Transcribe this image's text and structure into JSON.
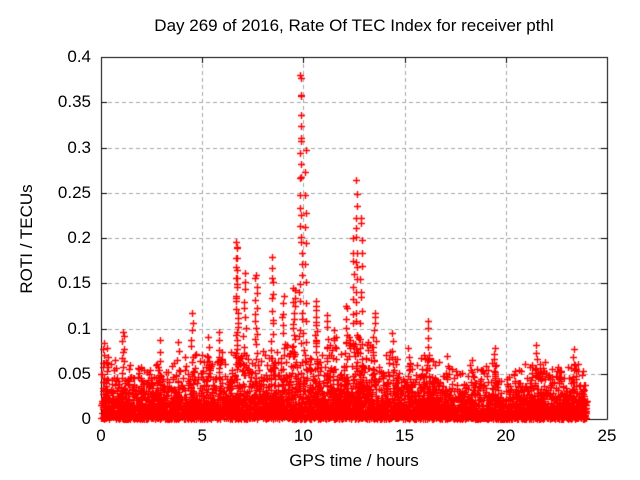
{
  "window": {
    "background": "#ffffff",
    "frame_color": "#000000",
    "text_color": "#000000"
  },
  "chart_data": {
    "type": "scatter",
    "title": "Day 269 of 2016, Rate Of TEC Index for receiver pthl",
    "xlabel": "GPS time / hours",
    "ylabel": "ROTI / TECUs",
    "xlim": [
      0,
      25
    ],
    "ylim": [
      0,
      0.4
    ],
    "xticks": {
      "values": [
        0,
        5,
        10,
        15,
        20,
        25
      ],
      "labels": [
        "0",
        "5",
        "10",
        "15",
        "20",
        "25"
      ]
    },
    "yticks": {
      "values": [
        0,
        0.05,
        0.1,
        0.15,
        0.2,
        0.25,
        0.3,
        0.35,
        0.4
      ],
      "labels": [
        "0",
        "0.05",
        "0.1",
        "0.15",
        "0.2",
        "0.25",
        "0.3",
        "0.35",
        "0.4"
      ]
    },
    "grid": {
      "visible": true,
      "style": "dashed",
      "color": "#a8a8a8"
    },
    "marker": {
      "glyph": "plus",
      "color": "#ff0000",
      "size": 7,
      "stroke": 1.4
    },
    "data_time_range": [
      0,
      24
    ],
    "seed": 42,
    "base_band": {
      "count": 5200,
      "exp_divisor": 3.2,
      "clamp_factor": 1.25,
      "envelope": [
        [
          0,
          0.055
        ],
        [
          0.5,
          0.05
        ],
        [
          1,
          0.058
        ],
        [
          1.5,
          0.05
        ],
        [
          2,
          0.045
        ],
        [
          2.5,
          0.052
        ],
        [
          3,
          0.05
        ],
        [
          3.5,
          0.048
        ],
        [
          4,
          0.055
        ],
        [
          4.5,
          0.058
        ],
        [
          5,
          0.062
        ],
        [
          5.5,
          0.058
        ],
        [
          6,
          0.06
        ],
        [
          6.5,
          0.068
        ],
        [
          7,
          0.065
        ],
        [
          7.5,
          0.062
        ],
        [
          8,
          0.065
        ],
        [
          8.5,
          0.062
        ],
        [
          9,
          0.07
        ],
        [
          9.5,
          0.078
        ],
        [
          10,
          0.082
        ],
        [
          10.5,
          0.075
        ],
        [
          11,
          0.07
        ],
        [
          11.5,
          0.072
        ],
        [
          12,
          0.078
        ],
        [
          12.5,
          0.082
        ],
        [
          13,
          0.075
        ],
        [
          13.5,
          0.068
        ],
        [
          14,
          0.062
        ],
        [
          14.5,
          0.058
        ],
        [
          15,
          0.055
        ],
        [
          15.5,
          0.052
        ],
        [
          16,
          0.058
        ],
        [
          16.5,
          0.055
        ],
        [
          17,
          0.05
        ],
        [
          17.5,
          0.046
        ],
        [
          18,
          0.05
        ],
        [
          18.5,
          0.046
        ],
        [
          19,
          0.05
        ],
        [
          19.5,
          0.054
        ],
        [
          20,
          0.036
        ],
        [
          20.5,
          0.045
        ],
        [
          21,
          0.05
        ],
        [
          21.5,
          0.055
        ],
        [
          22,
          0.05
        ],
        [
          22.5,
          0.046
        ],
        [
          23,
          0.05
        ],
        [
          23.5,
          0.053
        ],
        [
          24,
          0.048
        ]
      ]
    },
    "spikes": [
      {
        "t": 0.12,
        "peak": 0.086,
        "width": 0.1,
        "n": 10
      },
      {
        "t": 0.3,
        "peak": 0.08,
        "width": 0.12,
        "n": 8
      },
      {
        "t": 1.1,
        "peak": 0.098,
        "width": 0.12,
        "n": 14
      },
      {
        "t": 2.0,
        "peak": 0.062,
        "width": 0.08,
        "n": 4
      },
      {
        "t": 2.9,
        "peak": 0.088,
        "width": 0.1,
        "n": 7
      },
      {
        "t": 3.8,
        "peak": 0.089,
        "width": 0.1,
        "n": 7
      },
      {
        "t": 4.5,
        "peak": 0.115,
        "width": 0.12,
        "n": 11
      },
      {
        "t": 5.3,
        "peak": 0.09,
        "width": 0.15,
        "n": 9
      },
      {
        "t": 5.85,
        "peak": 0.096,
        "width": 0.12,
        "n": 10
      },
      {
        "t": 6.7,
        "peak": 0.198,
        "width": 0.14,
        "n": 30
      },
      {
        "t": 7.1,
        "peak": 0.165,
        "width": 0.1,
        "n": 13
      },
      {
        "t": 7.65,
        "peak": 0.162,
        "width": 0.12,
        "n": 18
      },
      {
        "t": 8.45,
        "peak": 0.178,
        "width": 0.12,
        "n": 16
      },
      {
        "t": 9.0,
        "peak": 0.135,
        "width": 0.15,
        "n": 14
      },
      {
        "t": 9.55,
        "peak": 0.148,
        "width": 0.18,
        "n": 20
      },
      {
        "t": 9.87,
        "peak": 0.385,
        "width": 0.1,
        "n": 28
      },
      {
        "t": 10.1,
        "peak": 0.3,
        "width": 0.08,
        "n": 12
      },
      {
        "t": 10.65,
        "peak": 0.135,
        "width": 0.15,
        "n": 18
      },
      {
        "t": 11.15,
        "peak": 0.12,
        "width": 0.12,
        "n": 10
      },
      {
        "t": 11.5,
        "peak": 0.1,
        "width": 0.1,
        "n": 8
      },
      {
        "t": 12.1,
        "peak": 0.13,
        "width": 0.12,
        "n": 12
      },
      {
        "t": 12.45,
        "peak": 0.2,
        "width": 0.08,
        "n": 12
      },
      {
        "t": 12.62,
        "peak": 0.26,
        "width": 0.08,
        "n": 18
      },
      {
        "t": 12.85,
        "peak": 0.23,
        "width": 0.08,
        "n": 14
      },
      {
        "t": 13.5,
        "peak": 0.12,
        "width": 0.18,
        "n": 14
      },
      {
        "t": 14.4,
        "peak": 0.097,
        "width": 0.12,
        "n": 8
      },
      {
        "t": 15.2,
        "peak": 0.08,
        "width": 0.15,
        "n": 8
      },
      {
        "t": 16.15,
        "peak": 0.112,
        "width": 0.1,
        "n": 10
      },
      {
        "t": 17.1,
        "peak": 0.072,
        "width": 0.1,
        "n": 5
      },
      {
        "t": 18.3,
        "peak": 0.068,
        "width": 0.12,
        "n": 5
      },
      {
        "t": 19.45,
        "peak": 0.082,
        "width": 0.15,
        "n": 9
      },
      {
        "t": 21.5,
        "peak": 0.085,
        "width": 0.12,
        "n": 8
      },
      {
        "t": 23.35,
        "peak": 0.078,
        "width": 0.15,
        "n": 9
      }
    ]
  }
}
